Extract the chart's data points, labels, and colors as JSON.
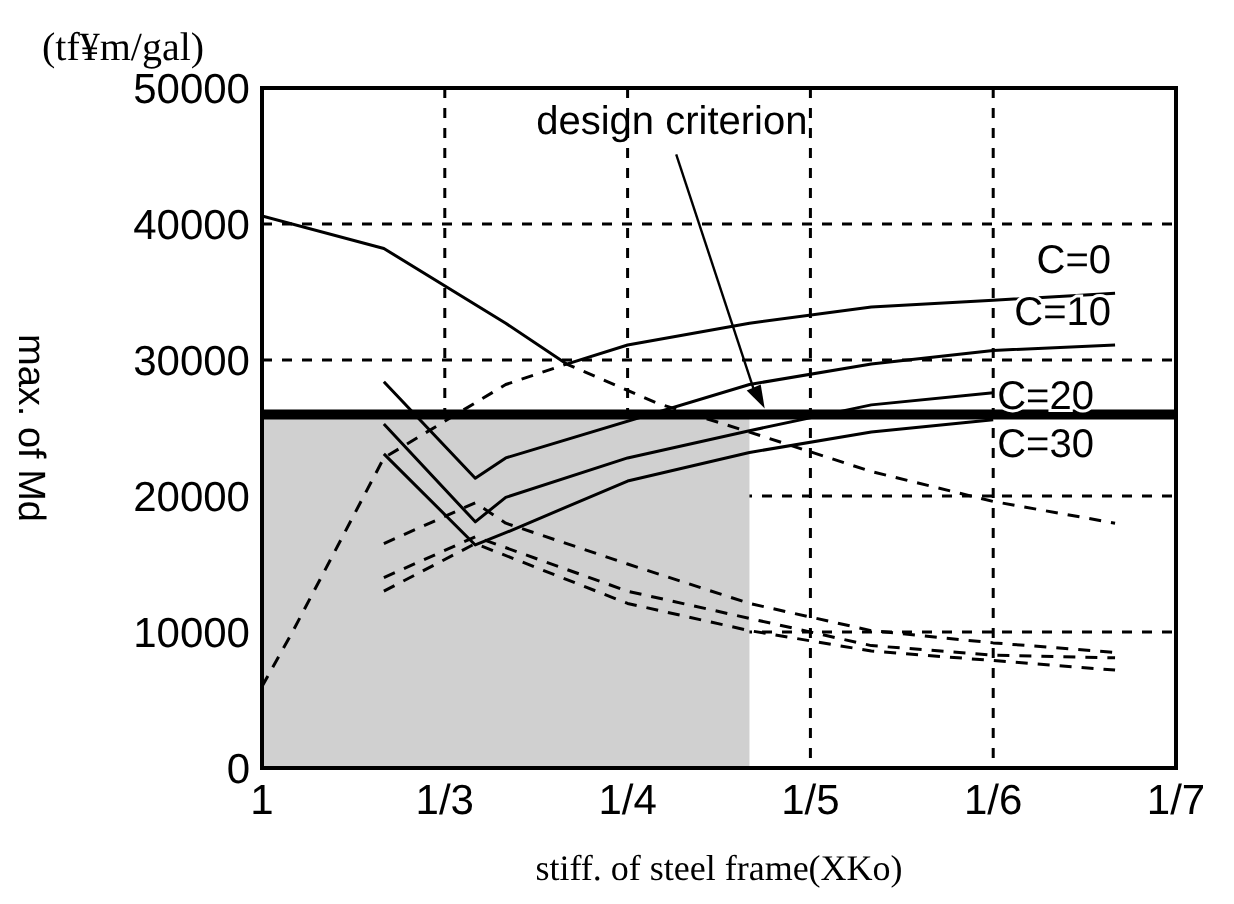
{
  "chart_data": {
    "type": "line",
    "xlabel": "stiff. of steel frame(XKo)",
    "ylabel": "max. of Md",
    "annotations": [
      "(tf¥m/gal)"
    ],
    "categories": [
      "1",
      null,
      null,
      null,
      null,
      null,
      "1/3",
      null,
      null,
      null,
      null,
      null,
      "1/4",
      null,
      null,
      null,
      null,
      null,
      "1/5",
      null,
      null,
      null,
      null,
      null,
      "1/6",
      null,
      null,
      null,
      null,
      null,
      "1/7"
    ],
    "ylim": [
      0,
      50000
    ],
    "yticks": [
      0,
      10000,
      20000,
      30000,
      40000,
      50000
    ],
    "grid": true,
    "marker": "none",
    "ref_lines": [
      {
        "axis": "y",
        "value": 26000,
        "label": "design criterion",
        "color": "#000000"
      }
    ],
    "series": [
      {
        "type": "area",
        "color": "#d0d0d0",
        "values": [
          26000,
          26000,
          26000,
          26000,
          26000,
          26000,
          26000,
          26000,
          26000,
          26000,
          26000,
          26000,
          26000,
          26000,
          26000,
          26000,
          26000,
          null,
          null,
          null,
          null,
          null,
          null,
          null,
          null,
          null,
          null,
          null,
          null,
          null,
          null
        ]
      },
      {
        "name": "C=0",
        "color": "#000000",
        "line_style": "solid",
        "values": [
          40600,
          null,
          null,
          null,
          38200,
          null,
          null,
          null,
          32700,
          null,
          29700,
          null,
          31100,
          null,
          null,
          null,
          32700,
          null,
          null,
          null,
          33900,
          null,
          null,
          null,
          34400,
          null,
          null,
          null,
          34900,
          null,
          null
        ]
      },
      {
        "name": "C=10",
        "color": "#000000",
        "line_style": "solid",
        "values": [
          null,
          null,
          null,
          null,
          28400,
          null,
          null,
          21300,
          22800,
          null,
          null,
          null,
          null,
          null,
          null,
          null,
          28200,
          null,
          null,
          null,
          29700,
          null,
          null,
          null,
          30700,
          null,
          null,
          null,
          31100,
          null,
          null
        ]
      },
      {
        "name": "C=20",
        "color": "#000000",
        "line_style": "solid",
        "values": [
          null,
          null,
          null,
          null,
          25300,
          null,
          null,
          18100,
          19900,
          null,
          null,
          null,
          22800,
          null,
          null,
          null,
          24800,
          null,
          null,
          null,
          26700,
          null,
          null,
          null,
          27600,
          null,
          null,
          null,
          null,
          null,
          null
        ]
      },
      {
        "name": "C=30",
        "color": "#000000",
        "line_style": "solid",
        "values": [
          null,
          null,
          null,
          null,
          23100,
          null,
          null,
          16400,
          17300,
          null,
          null,
          null,
          21100,
          null,
          null,
          null,
          23200,
          null,
          null,
          null,
          24700,
          null,
          null,
          null,
          25600,
          null,
          null,
          null,
          null,
          null,
          null
        ]
      },
      {
        "color": "#000000",
        "line_style": "dashed",
        "values": [
          6000,
          10000,
          null,
          null,
          22800,
          null,
          null,
          null,
          28200,
          null,
          29700,
          null,
          null,
          26800,
          null,
          null,
          24700,
          null,
          null,
          null,
          21800,
          null,
          null,
          null,
          19600,
          null,
          null,
          null,
          18000,
          null,
          null
        ]
      },
      {
        "color": "#000000",
        "line_style": "dashed",
        "values": [
          null,
          null,
          null,
          null,
          16500,
          null,
          null,
          19500,
          18000,
          null,
          null,
          null,
          15000,
          null,
          null,
          null,
          12100,
          null,
          null,
          null,
          10100,
          null,
          null,
          null,
          9200,
          null,
          null,
          null,
          8500,
          null,
          null
        ]
      },
      {
        "color": "#000000",
        "line_style": "dashed",
        "values": [
          null,
          null,
          null,
          null,
          14000,
          null,
          null,
          17000,
          null,
          null,
          null,
          null,
          13000,
          null,
          null,
          null,
          11000,
          null,
          null,
          null,
          9000,
          null,
          null,
          null,
          8300,
          null,
          null,
          null,
          8100,
          null,
          null
        ]
      },
      {
        "color": "#000000",
        "line_style": "dashed",
        "values": [
          null,
          null,
          null,
          null,
          13000,
          null,
          null,
          16500,
          null,
          null,
          null,
          null,
          12100,
          null,
          null,
          null,
          10100,
          null,
          null,
          null,
          8600,
          null,
          null,
          null,
          7900,
          null,
          null,
          null,
          7200,
          null,
          null
        ]
      }
    ]
  }
}
